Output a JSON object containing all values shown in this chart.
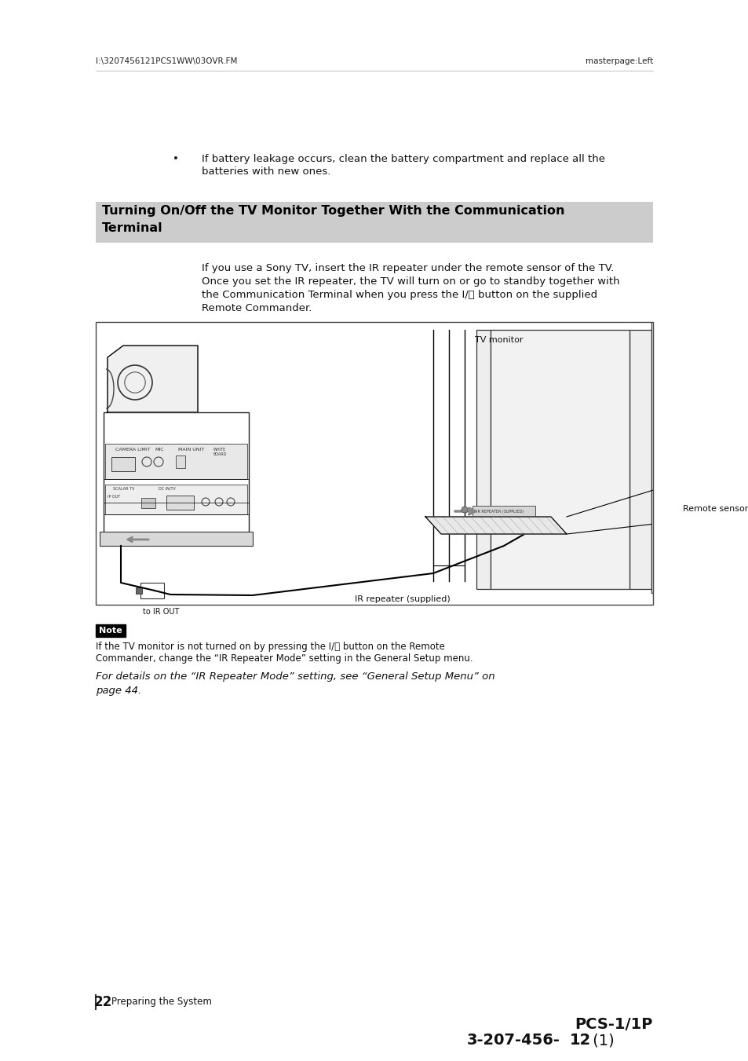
{
  "page_width": 9.54,
  "page_height": 13.51,
  "dpi": 100,
  "bg_color": "#ffffff",
  "header_left": "I:\\3207456121PCS1WW\\03OVR.FM",
  "header_right": "masterpage:Left",
  "header_fontsize": 7.5,
  "bullet_text_line1": "If battery leakage occurs, clean the battery compartment and replace all the",
  "bullet_text_line2": "batteries with new ones.",
  "bullet_fontsize": 9.5,
  "section_title_line1": "Turning On/Off the TV Monitor Together With the Communication",
  "section_title_line2": "Terminal",
  "section_title_fontsize": 11.5,
  "section_bg": "#cccccc",
  "body_line1": "If you use a Sony TV, insert the IR repeater under the remote sensor of the TV.",
  "body_line2": "Once you set the IR repeater, the TV will turn on or go to standby together with",
  "body_line3": "the Communication Terminal when you press the I/⏻ button on the supplied",
  "body_line4": "Remote Commander.",
  "body_fontsize": 9.5,
  "label_tv_monitor": "TV monitor",
  "label_remote_sensor": "Remote sensor",
  "label_ir_repeater": "IR repeater (supplied)",
  "label_to_ir_out": "to IR OUT",
  "note_title": "Note",
  "note_text_line1": "If the TV monitor is not turned on by pressing the I/⏻ button on the Remote",
  "note_text_line2": "Commander, change the “IR Repeater Mode” setting in the General Setup menu.",
  "note_fontsize": 8.5,
  "italic_line1": "For details on the “IR Repeater Mode” setting, see “General Setup Menu” on",
  "italic_line2": "page 44.",
  "italic_fontsize": 9.5,
  "page_number": "22",
  "page_label": "Preparing the System",
  "footer_line1": "PCS-1/1P",
  "footer_line2_part1": "3-207-456-",
  "footer_line2_bold": "12",
  "footer_line2_part2": " (1)",
  "footer_fontsize": 14
}
